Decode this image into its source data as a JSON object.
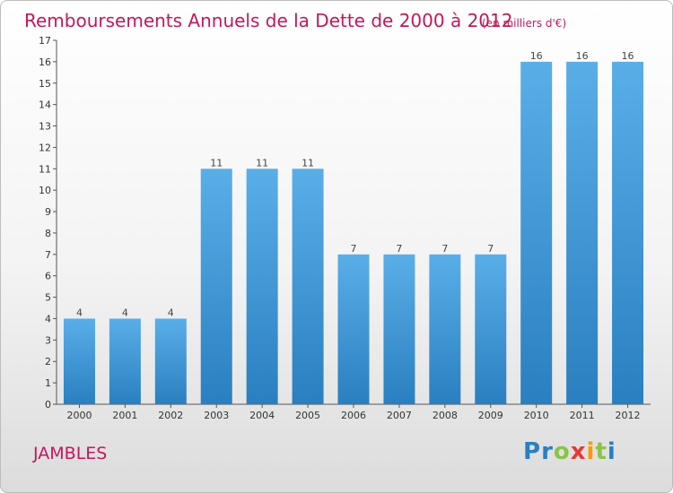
{
  "chart_data": {
    "type": "bar",
    "title": "Remboursements Annuels de la Dette de 2000 à 2012",
    "unit": "(en milliers d'€)",
    "categories": [
      "2000",
      "2001",
      "2002",
      "2003",
      "2004",
      "2005",
      "2006",
      "2007",
      "2008",
      "2009",
      "2010",
      "2011",
      "2012"
    ],
    "values": [
      4,
      4,
      4,
      11,
      11,
      11,
      7,
      7,
      7,
      7,
      16,
      16,
      16
    ],
    "ylim": [
      0,
      17
    ],
    "yticks": [
      0,
      1,
      2,
      3,
      4,
      5,
      6,
      7,
      8,
      9,
      10,
      11,
      12,
      13,
      14,
      15,
      16,
      17
    ],
    "grid": false,
    "colors": {
      "bar_light": "#5aaee8",
      "bar_dark": "#2a7fc0",
      "title": "#c2185b"
    }
  },
  "footer": {
    "commune": "JAMBLES",
    "logo": [
      "P",
      "r",
      "o",
      "x",
      "i",
      "t",
      "i"
    ],
    "logo_colors": [
      "#2a7fc0",
      "#2a7fc0",
      "#8bc34a",
      "#e53935",
      "#ff9800",
      "#8bc34a",
      "#2a7fc0"
    ]
  }
}
